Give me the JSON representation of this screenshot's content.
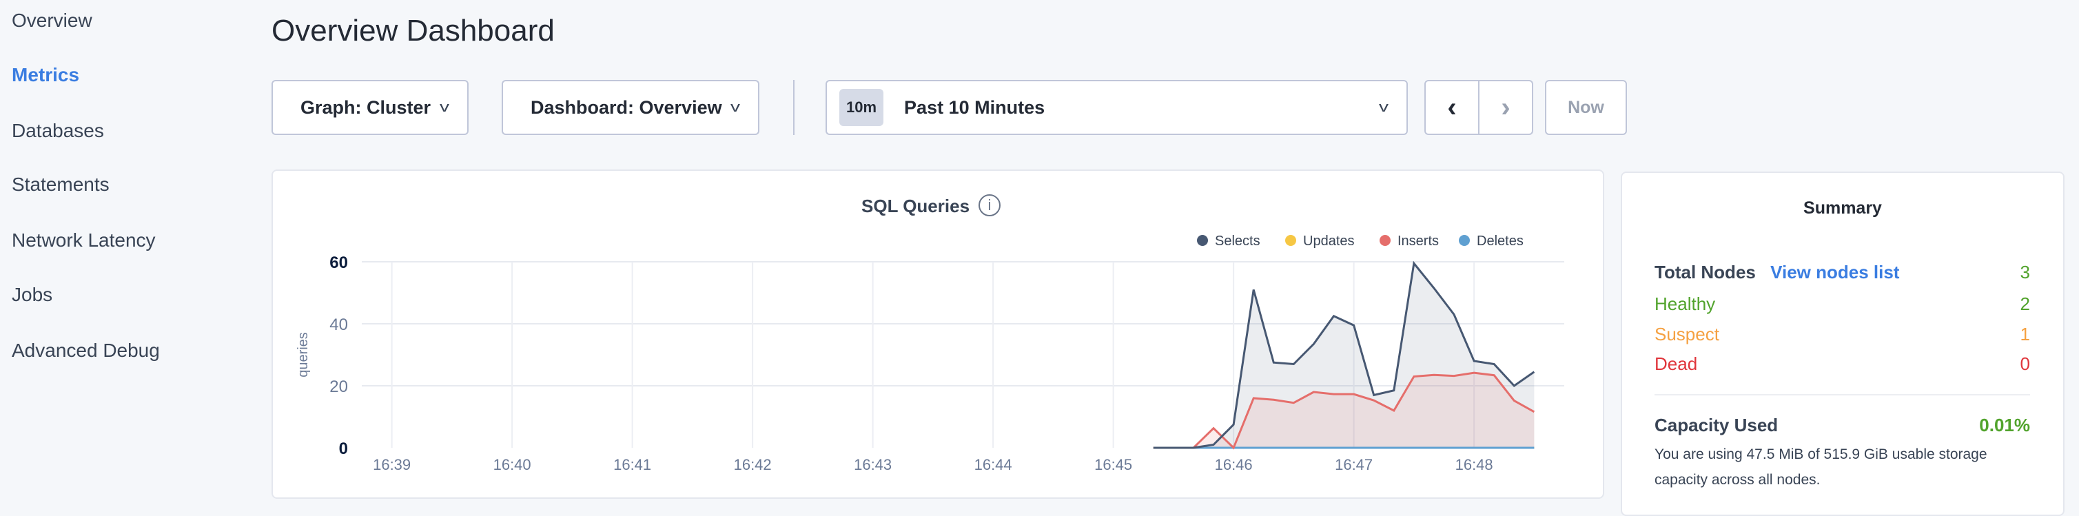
{
  "sidebar": {
    "items": [
      {
        "label": "Overview"
      },
      {
        "label": "Metrics",
        "active": true
      },
      {
        "label": "Databases"
      },
      {
        "label": "Statements"
      },
      {
        "label": "Network Latency"
      },
      {
        "label": "Jobs"
      },
      {
        "label": "Advanced Debug"
      }
    ]
  },
  "header": {
    "title": "Overview Dashboard"
  },
  "toolbar": {
    "graph_select": "Graph: Cluster",
    "dashboard_select": "Dashboard: Overview",
    "time_badge": "10m",
    "time_range": "Past 10 Minutes",
    "prev_icon": "chevron-left-icon",
    "next_icon": "chevron-right-icon",
    "now_label": "Now"
  },
  "colors": {
    "accent": "#3a7de1",
    "healthy": "#51a32c",
    "suspect": "#f5a142",
    "dead": "#e0353b"
  },
  "chart_data": {
    "type": "area",
    "title": "SQL Queries",
    "ylabel": "queries",
    "ylim": [
      0,
      60
    ],
    "yticks": [
      "0",
      "20",
      "40",
      "60"
    ],
    "xlim": [
      "16:38:45",
      "16:48:45"
    ],
    "xticks": [
      "16:39",
      "16:40",
      "16:41",
      "16:42",
      "16:43",
      "16:44",
      "16:45",
      "16:46",
      "16:47",
      "16:48"
    ],
    "grid": true,
    "legend_position": "top-right",
    "x": [
      "16:45:20",
      "16:45:30",
      "16:45:40",
      "16:45:50",
      "16:46:00",
      "16:46:10",
      "16:46:20",
      "16:46:30",
      "16:46:40",
      "16:46:50",
      "16:47:00",
      "16:47:10",
      "16:47:20",
      "16:47:30",
      "16:47:40",
      "16:47:50",
      "16:48:00",
      "16:48:10",
      "16:48:20",
      "16:48:30"
    ],
    "series": [
      {
        "name": "Selects",
        "color": "#475872",
        "values": [
          0,
          0,
          0,
          1,
          7.5,
          51,
          27.5,
          27,
          33.5,
          42.5,
          39.5,
          17,
          18.5,
          59.5,
          51.5,
          43,
          28,
          27,
          20,
          24.5
        ]
      },
      {
        "name": "Updates",
        "color": "#f6c744",
        "values": [
          0,
          0,
          0,
          0,
          0,
          0,
          0,
          0,
          0,
          0,
          0,
          0,
          0,
          0,
          0,
          0,
          0,
          0,
          0,
          0
        ]
      },
      {
        "name": "Inserts",
        "color": "#e56e6b",
        "values": [
          0,
          0,
          0,
          6.3,
          0,
          16,
          15.5,
          14.5,
          18,
          17.3,
          17.3,
          15.3,
          12,
          23,
          23.5,
          23.2,
          24.2,
          23.4,
          15.2,
          11.6
        ]
      },
      {
        "name": "Deletes",
        "color": "#5fa0d1",
        "values": [
          0,
          0,
          0,
          0,
          0,
          0,
          0,
          0,
          0,
          0,
          0,
          0,
          0,
          0,
          0,
          0,
          0,
          0,
          0,
          0
        ]
      }
    ]
  },
  "summary": {
    "title": "Summary",
    "total_nodes_label": "Total Nodes",
    "view_nodes_link": "View nodes list",
    "total_nodes": "3",
    "healthy_label": "Healthy",
    "healthy": "2",
    "suspect_label": "Suspect",
    "suspect": "1",
    "dead_label": "Dead",
    "dead": "0",
    "capacity_label": "Capacity Used",
    "capacity_value": "0.01%",
    "capacity_text_1": "You are using 47.5 MiB of 515.9 GiB usable storage",
    "capacity_text_2": "capacity across all nodes."
  }
}
